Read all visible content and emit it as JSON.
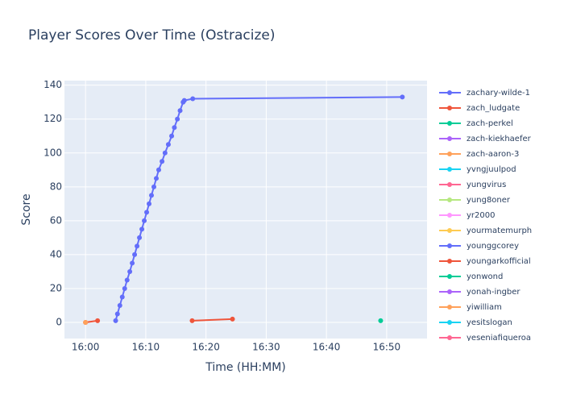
{
  "chart_data": {
    "type": "line",
    "title": "Player Scores Over Time (Ostracize)",
    "x_label": "Time (HH:MM)",
    "y_label": "Score",
    "xlim": [
      -3.5,
      56.7
    ],
    "ylim": [
      -9.5,
      142.7
    ],
    "xticks": [
      {
        "value": 0,
        "label": "16:00"
      },
      {
        "value": 10,
        "label": "16:10"
      },
      {
        "value": 20,
        "label": "16:20"
      },
      {
        "value": 30,
        "label": "16:30"
      },
      {
        "value": 40,
        "label": "16:40"
      },
      {
        "value": 50,
        "label": "16:50"
      }
    ],
    "yticks": [
      0,
      20,
      40,
      60,
      80,
      100,
      120,
      140
    ],
    "grid": true,
    "legend": "right",
    "series": [
      {
        "name": "zachary-wilde-1",
        "color": "#636efa",
        "x": [
          5.0,
          5.3,
          5.7,
          6.1,
          6.5,
          6.9,
          7.35,
          7.75,
          8.15,
          8.55,
          8.95,
          9.35,
          9.75,
          10.15,
          10.55,
          10.95,
          11.35,
          11.75,
          12.15,
          12.7,
          13.2,
          13.75,
          14.3,
          14.75,
          15.25,
          15.7,
          16.2,
          16.4,
          17.8,
          52.6
        ],
        "values": [
          1,
          5,
          10,
          15,
          20,
          25,
          30,
          35,
          40,
          45,
          50,
          55,
          60,
          65,
          70,
          75,
          80,
          85,
          90,
          95,
          100,
          105,
          110,
          115,
          120,
          125,
          130,
          131,
          132,
          133
        ]
      },
      {
        "name": "zach_ludgate",
        "color": "#EF553B",
        "x": [
          0,
          2
        ],
        "values": [
          0,
          1
        ]
      },
      {
        "name": "zach-perkel",
        "color": "#00cc96",
        "x": [
          49
        ],
        "values": [
          1
        ]
      },
      {
        "name": "zach-kiekhaefer",
        "color": "#ab63fa",
        "x": [],
        "values": []
      },
      {
        "name": "zach-aaron-3",
        "color": "#FFA15A",
        "x": [
          0
        ],
        "values": [
          0
        ]
      },
      {
        "name": "yvngjuulpod",
        "color": "#19d3f3",
        "x": [],
        "values": []
      },
      {
        "name": "yungvirus",
        "color": "#FF6692",
        "x": [],
        "values": []
      },
      {
        "name": "yung8oner",
        "color": "#B6E880",
        "x": [],
        "values": []
      },
      {
        "name": "yr2000",
        "color": "#FF97FF",
        "x": [],
        "values": []
      },
      {
        "name": "yourmatemurph",
        "color": "#FECB52",
        "x": [],
        "values": []
      },
      {
        "name": "younggcorey",
        "color": "#636efa",
        "x": [],
        "values": []
      },
      {
        "name": "youngarkofficial",
        "color": "#EF553B",
        "x": [
          17.7,
          24.4
        ],
        "values": [
          1,
          2
        ]
      },
      {
        "name": "yonwond",
        "color": "#00cc96",
        "x": [],
        "values": []
      },
      {
        "name": "yonah-ingber",
        "color": "#ab63fa",
        "x": [],
        "values": []
      },
      {
        "name": "yiwilliam",
        "color": "#FFA15A",
        "x": [],
        "values": []
      },
      {
        "name": "yesitslogan",
        "color": "#19d3f3",
        "x": [],
        "values": []
      },
      {
        "name": "yeseniafigueroa",
        "color": "#FF6692",
        "x": [],
        "values": []
      }
    ]
  }
}
